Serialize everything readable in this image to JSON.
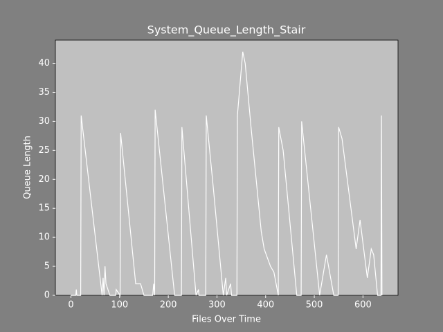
{
  "chart_data": {
    "type": "line",
    "title": "System_Queue_Length_Stair",
    "x_label": "Files Over Time",
    "y_label": "Queue Length",
    "x": [
      0,
      10,
      11,
      12,
      20,
      21,
      64,
      66,
      68,
      70,
      72,
      80,
      92,
      93,
      101,
      102,
      133,
      143,
      150,
      168,
      170,
      172,
      173,
      213,
      227,
      228,
      257,
      262,
      263,
      277,
      278,
      292,
      313,
      318,
      320,
      328,
      330,
      341,
      342,
      353,
      358,
      370,
      391,
      397,
      410,
      417,
      426,
      427,
      436,
      464,
      473,
      474,
      511,
      525,
      540,
      549,
      550,
      557,
      586,
      594,
      609,
      617,
      622,
      630,
      637,
      638,
      639
    ],
    "values": [
      0,
      0,
      1,
      0,
      0,
      31,
      0,
      3,
      0,
      5,
      2,
      0,
      0,
      1,
      0,
      28,
      2,
      2,
      0,
      0,
      2,
      0,
      32,
      0,
      0,
      29,
      0,
      1,
      0,
      0,
      31,
      19,
      0,
      3,
      0,
      2,
      0,
      0,
      31,
      42,
      40,
      29,
      11,
      8,
      5,
      4,
      0,
      29,
      25,
      0,
      0,
      30,
      0,
      7,
      0,
      0,
      29,
      27,
      8,
      13,
      3,
      8,
      7,
      0,
      0,
      31,
      0
    ],
    "color": "#ffffff",
    "xlim": [
      -32,
      672
    ],
    "ylim": [
      0,
      44
    ],
    "xticks": [
      0,
      100,
      200,
      300,
      400,
      500,
      600
    ],
    "yticks": [
      0,
      5,
      10,
      15,
      20,
      25,
      30,
      35,
      40
    ],
    "grid": false
  }
}
